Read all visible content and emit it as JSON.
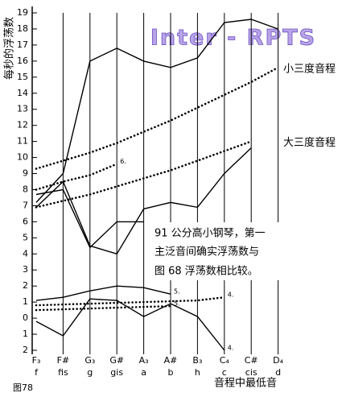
{
  "chart_data": {
    "type": "line",
    "y_label": "每秒的浮荡数",
    "x_label": "音程中最低音",
    "figure_label": "图78",
    "watermark": "Inter - RPTS",
    "note": [
      "91 公分高小钢琴，第一",
      "主泛音间确实浮荡数与",
      "图 68 浮荡数相比较。"
    ],
    "categories": [
      "F₃",
      "F#",
      "G₃",
      "G#",
      "A₃",
      "A#",
      "B₃",
      "C₄",
      "C#",
      "D₄"
    ],
    "categories_secondary": [
      "f",
      "fis",
      "g",
      "gis",
      "a",
      "b",
      "h",
      "c",
      "cis",
      "d"
    ],
    "ylim": [
      -2,
      19
    ],
    "yticks": [
      19,
      18,
      17,
      16,
      15,
      14,
      13,
      12,
      11,
      10,
      9,
      8,
      7,
      6,
      5,
      4,
      3,
      2,
      1,
      0,
      {
        "value": -1,
        "label": "1"
      },
      {
        "value": -2,
        "label": "2"
      }
    ],
    "grid": true,
    "color": "#000000",
    "series": [
      {
        "style": "solid",
        "values": [
          7.2,
          9.0,
          16.0,
          16.8,
          16.0,
          15.6,
          16.2,
          18.4,
          18.6,
          18.0
        ]
      },
      {
        "style": "solid",
        "values": [
          6.9,
          8.5,
          4.5,
          4.0,
          6.8,
          7.2,
          6.9,
          9.0,
          10.6,
          null
        ]
      },
      {
        "style": "solid",
        "values": [
          7.7,
          8.0,
          4.4,
          6.0,
          6.0,
          null,
          null,
          null,
          null,
          null
        ]
      },
      {
        "name": "小三度音程",
        "style": "dotted",
        "values": [
          9.3,
          9.8,
          10.3,
          10.9,
          11.6,
          12.3,
          13.1,
          13.9,
          14.7,
          15.6
        ]
      },
      {
        "name": "大三度音程",
        "style": "dotted",
        "values": [
          6.9,
          7.3,
          7.7,
          8.2,
          8.7,
          9.2,
          9.8,
          10.4,
          11.0,
          null
        ]
      },
      {
        "style": "dotted",
        "end_label": "6.",
        "values": [
          8.0,
          8.5,
          8.9,
          9.6,
          null,
          null,
          null,
          null,
          null,
          null
        ]
      },
      {
        "style": "solid",
        "end_label": "5.",
        "values": [
          1.1,
          1.3,
          1.7,
          2.0,
          1.9,
          1.5,
          null,
          null,
          null,
          null
        ]
      },
      {
        "style": "solid",
        "end_label": "4.",
        "values": [
          -0.2,
          -1.1,
          1.2,
          1.1,
          0.1,
          0.9,
          0.1,
          -2.0,
          null,
          null
        ]
      },
      {
        "style": "dotted",
        "end_label": "4.",
        "values": [
          0.8,
          0.85,
          0.9,
          0.95,
          1.0,
          1.05,
          1.1,
          1.3,
          null,
          null
        ]
      },
      {
        "style": "dotted",
        "end_label": "5.",
        "values": [
          0.5,
          0.55,
          0.6,
          0.65,
          0.7,
          0.75,
          null,
          null,
          null,
          null
        ]
      }
    ]
  }
}
